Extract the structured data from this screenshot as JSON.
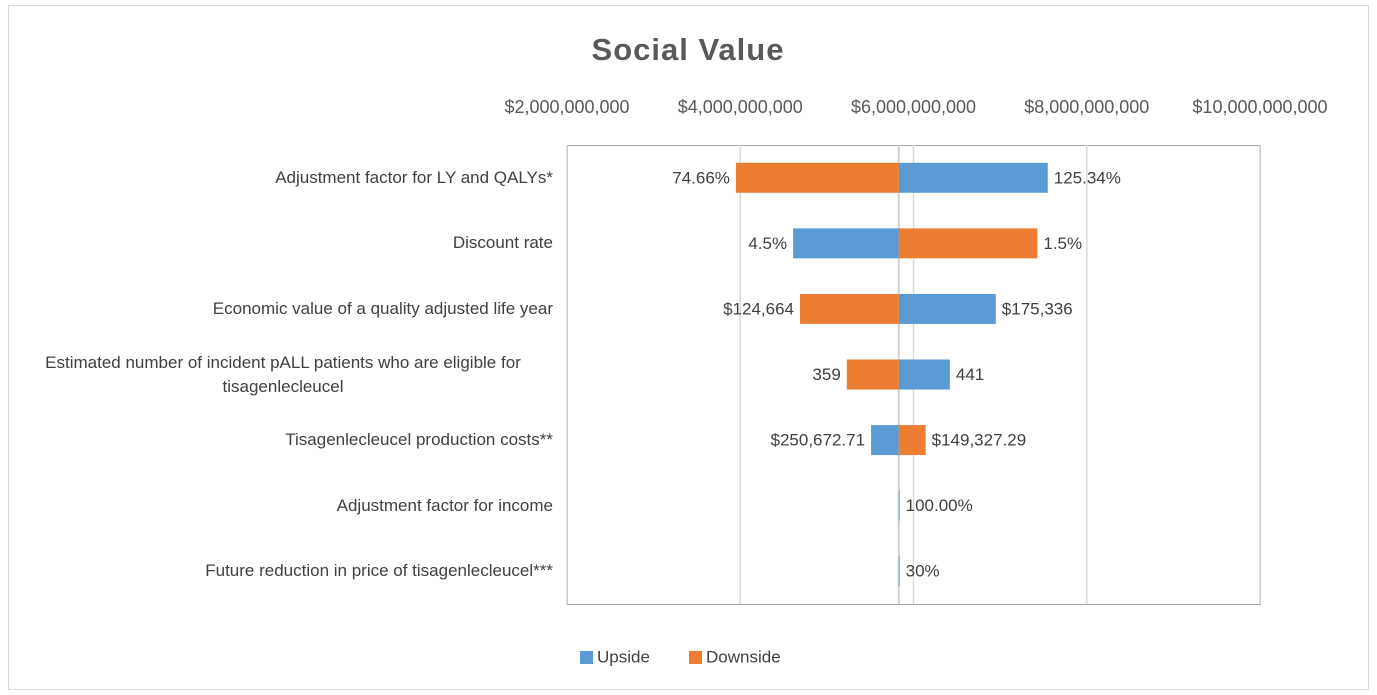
{
  "chart_data": {
    "type": "tornado",
    "title": "Social Value",
    "categories": [
      "Adjustment factor for LY and QALYs*",
      "Discount rate",
      "Economic value of a quality adjusted life year",
      "Estimated number of incident pALL patients who are eligible for tisagenlecleucel",
      "Tisagenlecleucel production costs**",
      "Adjustment factor for income",
      "Future reduction in price of tisagenlecleucel***"
    ],
    "base_value": 5830000000,
    "xlim": [
      2000000000,
      10000000000
    ],
    "xticks": [
      {
        "value": 2000000000,
        "label": "$2,000,000,000"
      },
      {
        "value": 4000000000,
        "label": "$4,000,000,000"
      },
      {
        "value": 6000000000,
        "label": "$6,000,000,000"
      },
      {
        "value": 8000000000,
        "label": "$8,000,000,000"
      },
      {
        "value": 10000000000,
        "label": "$10,000,000,000"
      }
    ],
    "grid": true,
    "legend_position": "bottom",
    "series": [
      {
        "name": "Upside",
        "color": "#5b9bd5",
        "values": [
          7550000000,
          4610000000,
          6950000000,
          6420000000,
          5510000000,
          5840000000,
          5840000000
        ],
        "input_labels": [
          "125.34%",
          "4.5%",
          "$175,336",
          "441",
          "$250,672.71",
          "100.00%",
          "30%"
        ]
      },
      {
        "name": "Downside",
        "color": "#ed7d31",
        "values": [
          3950000000,
          7430000000,
          4690000000,
          5230000000,
          6140000000,
          5830000000,
          5830000000
        ],
        "input_labels": [
          "74.66%",
          "1.5%",
          "$124,664",
          "359",
          "$149,327.29",
          null,
          null
        ]
      }
    ]
  }
}
